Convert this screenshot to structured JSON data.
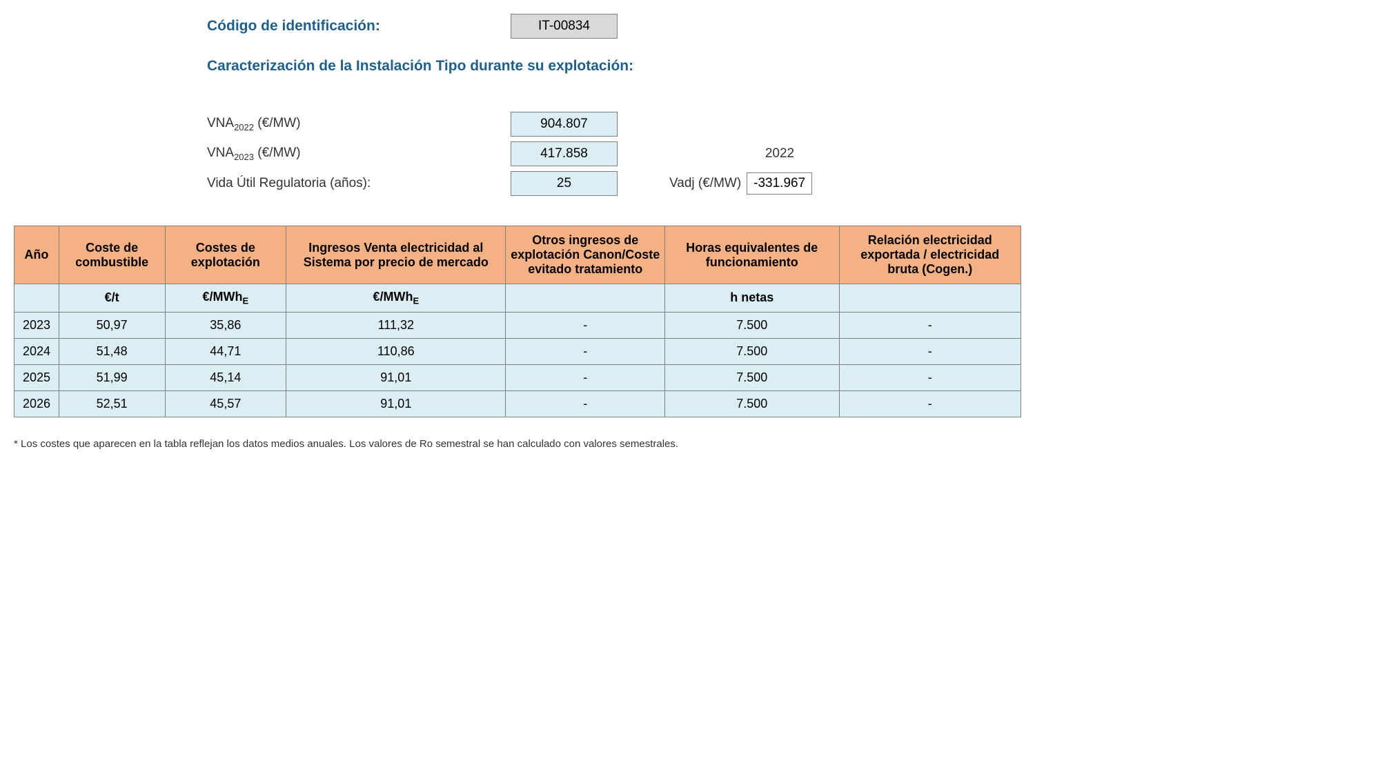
{
  "header": {
    "id_label": "Código de identificación:",
    "id_value": "IT-00834",
    "sub_header": "Caracterización de la Instalación Tipo durante su explotación:"
  },
  "params": {
    "vna2022_label_pre": "VNA",
    "vna2022_sub": "2022",
    "vna2022_label_post": " (€/MW)",
    "vna2022_value": "904.807",
    "vna2023_label_pre": "VNA",
    "vna2023_sub": "2023",
    "vna2023_label_post": " (€/MW)",
    "vna2023_value": "417.858",
    "year_ref": "2022",
    "vida_label": "Vida Útil Regulatoria (años):",
    "vida_value": "25",
    "vadj_label": "Vadj (€/MW)",
    "vadj_value": "-331.967"
  },
  "table": {
    "headers": {
      "year": "Año",
      "fuel_cost": "Coste de combustible",
      "exploit_cost": "Costes de explotación",
      "market_income": "Ingresos Venta electricidad al Sistema por precio de mercado",
      "other_income": "Otros ingresos de explotación Canon/Coste evitado tratamiento",
      "hours": "Horas equivalentes de funcionamiento",
      "relation": "Relación electricidad exportada / electricidad bruta (Cogen.)"
    },
    "units": {
      "year": "",
      "fuel_cost": "€/t",
      "exploit_cost_pre": "€/MWh",
      "exploit_cost_sub": "E",
      "market_income_pre": "€/MWh",
      "market_income_sub": "E",
      "other_income": "",
      "hours": "h netas",
      "relation": ""
    },
    "rows": [
      {
        "year": "2023",
        "fuel": "50,97",
        "exploit": "35,86",
        "income": "111,32",
        "other": "-",
        "hours": "7.500",
        "relation": "-"
      },
      {
        "year": "2024",
        "fuel": "51,48",
        "exploit": "44,71",
        "income": "110,86",
        "other": "-",
        "hours": "7.500",
        "relation": "-"
      },
      {
        "year": "2025",
        "fuel": "51,99",
        "exploit": "45,14",
        "income": "91,01",
        "other": "-",
        "hours": "7.500",
        "relation": "-"
      },
      {
        "year": "2026",
        "fuel": "52,51",
        "exploit": "45,57",
        "income": "91,01",
        "other": "-",
        "hours": "7.500",
        "relation": "-"
      }
    ]
  },
  "footnote": "* Los costes que aparecen en la tabla reflejan los datos medios anuales. Los valores de Ro semestral se han calculado con valores semestrales."
}
